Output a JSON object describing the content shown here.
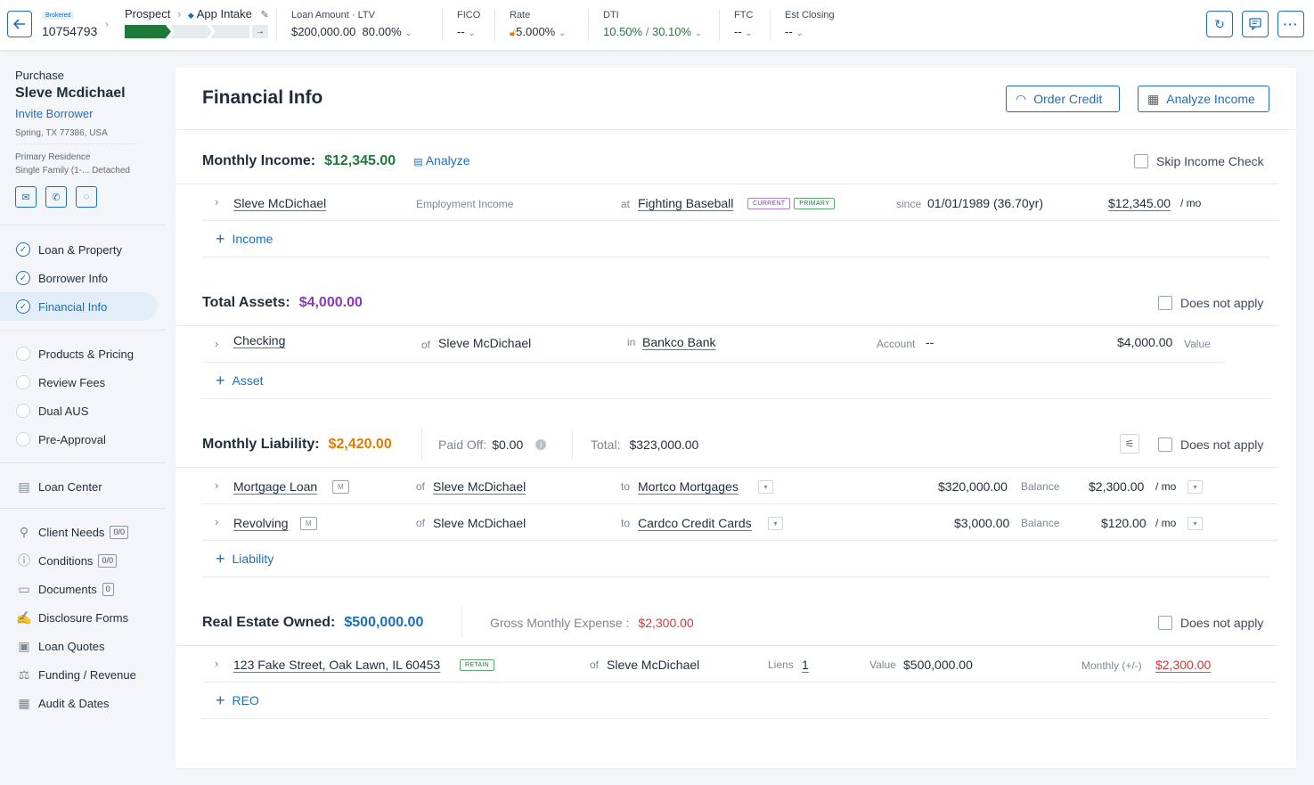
{
  "topbar": {
    "tag": "Brokered",
    "loan_number": "10754793",
    "stage_from": "Prospect",
    "stage_to": "App Intake",
    "loan_amount_label": "Loan Amount · LTV",
    "loan_amount": "$200,000.00",
    "ltv": "80.00%",
    "fico_label": "FICO",
    "fico": "--",
    "rate_label": "Rate",
    "rate": "5.000%",
    "dti_label": "DTI",
    "dti_front": "10.50%",
    "dti_sep": "/",
    "dti_back": "30.10%",
    "ftc_label": "FTC",
    "ftc": "--",
    "closing_label": "Est Closing",
    "closing": "--",
    "progress_fraction": 0.33
  },
  "sidebar": {
    "purpose": "Purchase",
    "borrower_name": "Sleve Mcdichael",
    "invite": "Invite Borrower",
    "address": "Spring, TX 77386, USA",
    "occupancy": "Primary Residence",
    "property_type": "Single Family (1-...  Detached",
    "nav1": [
      {
        "label": "Loan & Property",
        "done": true
      },
      {
        "label": "Borrower Info",
        "done": true
      },
      {
        "label": "Financial Info",
        "done": true
      }
    ],
    "nav2": [
      {
        "label": "Products & Pricing"
      },
      {
        "label": "Review Fees"
      },
      {
        "label": "Dual AUS"
      },
      {
        "label": "Pre-Approval"
      }
    ],
    "loan_center": "Loan Center",
    "nav3": [
      {
        "label": "Client Needs",
        "badge": "0/0"
      },
      {
        "label": "Conditions",
        "badge": "0/0"
      },
      {
        "label": "Documents",
        "badge": "0"
      },
      {
        "label": "Disclosure Forms",
        "badge": ""
      },
      {
        "label": "Loan Quotes",
        "badge": ""
      },
      {
        "label": "Funding / Revenue",
        "badge": ""
      },
      {
        "label": "Audit & Dates",
        "badge": ""
      }
    ]
  },
  "main": {
    "title": "Financial Info",
    "order_credit": "Order Credit",
    "analyze_income": "Analyze Income",
    "income": {
      "heading": "Monthly Income:",
      "total": "$12,345.00",
      "analyze": "Analyze",
      "skip": "Skip Income Check",
      "row": {
        "name": "Sleve McDichael",
        "type": "Employment Income",
        "at": "at",
        "employer": "Fighting Baseball",
        "tag1": "CURRENT",
        "tag2": "PRIMARY",
        "since_label": "since",
        "since": "01/01/1989 (36.70yr)",
        "amount": "$12,345.00",
        "per": "/ mo"
      },
      "add": "Income"
    },
    "assets": {
      "heading": "Total Assets:",
      "total": "$4,000.00",
      "na": "Does not apply",
      "row": {
        "name": "Checking",
        "of": "of",
        "owner": "Sleve McDichael",
        "in": "in",
        "bank": "Bankco Bank",
        "account_label": "Account",
        "account": "--",
        "value": "$4,000.00",
        "value_label": "Value"
      },
      "add": "Asset"
    },
    "liability": {
      "heading": "Monthly Liability:",
      "total": "$2,420.00",
      "paid_label": "Paid Off:",
      "paid": "$0.00",
      "total_label": "Total:",
      "total_all": "$323,000.00",
      "na": "Does not apply",
      "rows": [
        {
          "name": "Mortgage Loan",
          "tag": "M",
          "of": "of",
          "owner": "Sleve McDichael",
          "to": "to",
          "creditor": "Mortco Mortgages",
          "balance": "$320,000.00",
          "balance_label": "Balance",
          "payment": "$2,300.00",
          "per": "/ mo"
        },
        {
          "name": "Revolving",
          "tag": "M",
          "of": "of",
          "owner": "Sleve McDichael",
          "to": "to",
          "creditor": "Cardco Credit Cards",
          "balance": "$3,000.00",
          "balance_label": "Balance",
          "payment": "$120.00",
          "per": "/ mo"
        }
      ],
      "add": "Liability"
    },
    "reo": {
      "heading": "Real Estate Owned:",
      "total": "$500,000.00",
      "expense_label": "Gross Monthly Expense :",
      "expense": "$2,300.00",
      "na": "Does not apply",
      "row": {
        "address": "123 Fake Street, Oak Lawn, IL 60453",
        "tag": "RETAIN",
        "of": "of",
        "owner": "Sleve McDichael",
        "liens_label": "Liens",
        "liens": "1",
        "value_label": "Value",
        "value": "$500,000.00",
        "monthly_label": "Monthly (+/-)",
        "monthly": "$2,300.00"
      },
      "add": "REO"
    }
  },
  "colors": {
    "accent": "#1e6fb8",
    "green": "#1f7a3a",
    "purple": "#8b3ab5",
    "orange": "#e07b00",
    "red": "#d03a3a"
  }
}
